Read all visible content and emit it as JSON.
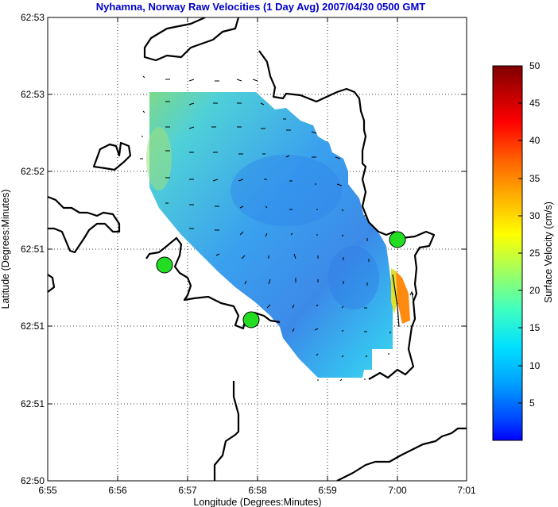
{
  "title": "Nyhamna, Norway Raw Velocities (1 Day Avg) 2007/04/30 0500 GMT",
  "x_axis": {
    "label": "Longitude (Degrees:Minutes)",
    "ticks": [
      "6:55",
      "6:56",
      "6:57",
      "6:58",
      "6:59",
      "7:00",
      "7:01"
    ]
  },
  "y_axis": {
    "label": "Latitude (Degrees:Minutes)",
    "ticks": [
      "62:53",
      "62:53",
      "62:52",
      "62:51",
      "62:51",
      "62:51",
      "62:50"
    ]
  },
  "colorbar": {
    "label": "Surface Velocity (cm/s)",
    "ticks": [
      "50",
      "45",
      "40",
      "35",
      "30",
      "25",
      "20",
      "15",
      "10",
      "5"
    ],
    "range": [
      0,
      50
    ],
    "colormap": "jet"
  },
  "stations": [
    {
      "name": "station-west",
      "color": "#00cc00"
    },
    {
      "name": "station-south",
      "color": "#00cc00"
    },
    {
      "name": "station-east",
      "color": "#00cc00"
    }
  ],
  "colors": {
    "title": "#0000cc",
    "coastline": "#000000",
    "station": "#22dd22",
    "current_field": "#4db8ff"
  },
  "grid": "dotted"
}
